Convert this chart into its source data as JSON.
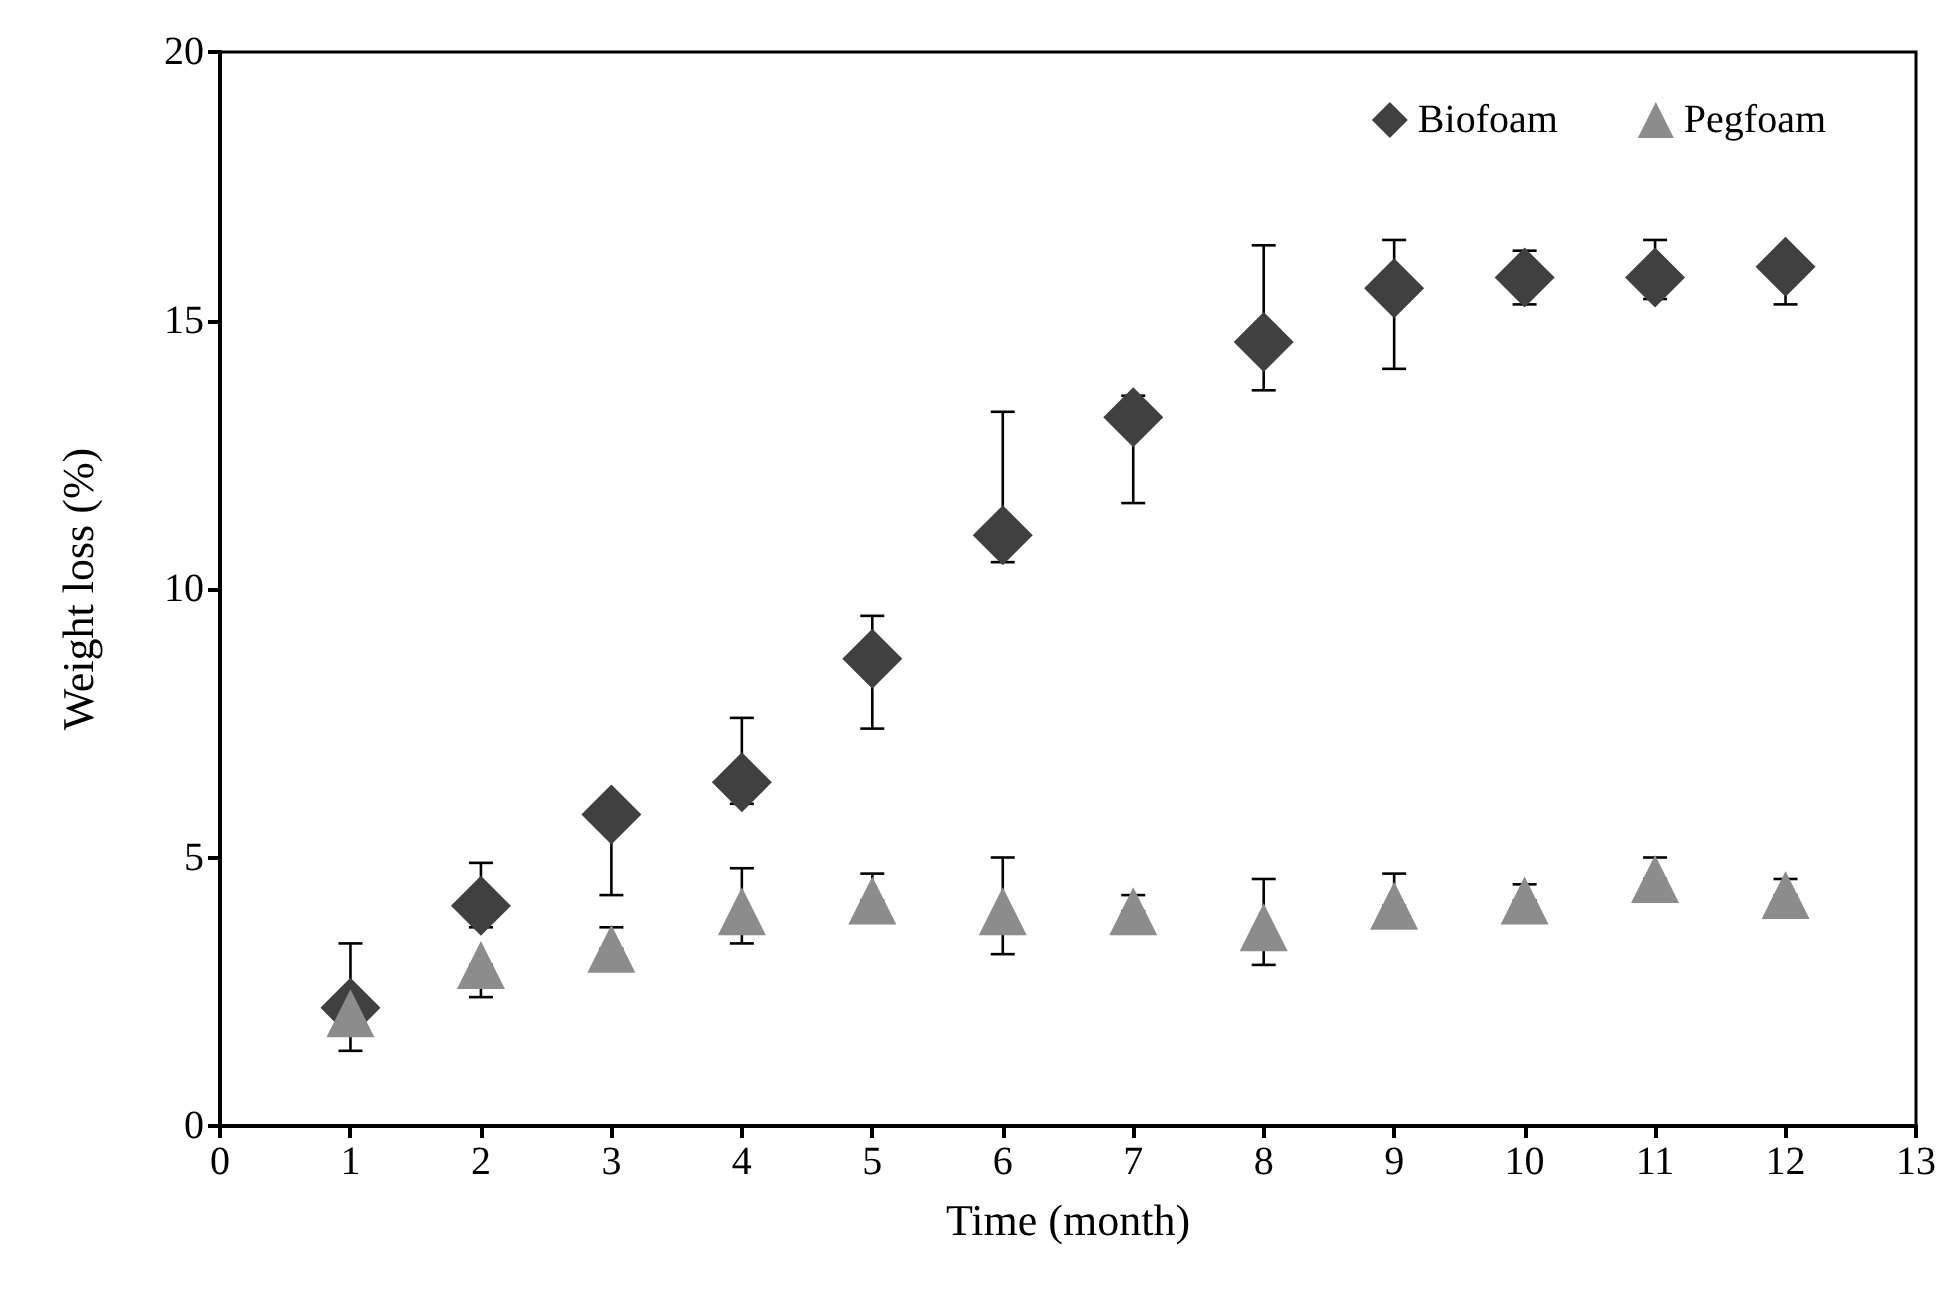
{
  "chart_data": {
    "type": "scatter",
    "xlabel": "Time (month)",
    "ylabel": "Weight loss (%)",
    "x": [
      1,
      2,
      3,
      4,
      5,
      6,
      7,
      8,
      9,
      10,
      11,
      12
    ],
    "xlim": [
      0,
      13
    ],
    "xticks": [
      0,
      1,
      2,
      3,
      4,
      5,
      6,
      7,
      8,
      9,
      10,
      11,
      12,
      13
    ],
    "ylim": [
      0,
      20
    ],
    "yticks": [
      0,
      5,
      10,
      15,
      20
    ],
    "grid": false,
    "legend": "top right",
    "series": [
      {
        "name": "Biofoam",
        "color": "#404040",
        "marker": "diamond",
        "values": [
          2.2,
          4.1,
          5.8,
          6.4,
          8.7,
          11.0,
          13.2,
          14.6,
          15.6,
          15.8,
          15.8,
          16.0
        ],
        "errors": [
          [
            2.2,
            3.4
          ],
          [
            3.7,
            4.9
          ],
          [
            4.3,
            5.8
          ],
          [
            6.0,
            7.6
          ],
          [
            7.4,
            9.5
          ],
          [
            10.5,
            13.3
          ],
          [
            11.6,
            13.6
          ],
          [
            13.7,
            16.4
          ],
          [
            14.1,
            16.5
          ],
          [
            15.3,
            16.3
          ],
          [
            15.4,
            16.5
          ],
          [
            15.3,
            16.0
          ]
        ]
      },
      {
        "name": "Pegfoam",
        "color": "#8c8c8c",
        "marker": "triangle",
        "values": [
          2.1,
          3.0,
          3.3,
          4.0,
          4.2,
          4.0,
          4.0,
          3.7,
          4.1,
          4.2,
          4.6,
          4.3
        ],
        "errors": [
          [
            1.4,
            2.1
          ],
          [
            2.4,
            3.0
          ],
          [
            3.3,
            3.7
          ],
          [
            3.4,
            4.8
          ],
          [
            4.2,
            4.7
          ],
          [
            3.2,
            5.0
          ],
          [
            4.0,
            4.3
          ],
          [
            3.0,
            4.6
          ],
          [
            4.1,
            4.7
          ],
          [
            4.2,
            4.5
          ],
          [
            4.6,
            5.0
          ],
          [
            4.3,
            4.6
          ]
        ]
      }
    ]
  }
}
